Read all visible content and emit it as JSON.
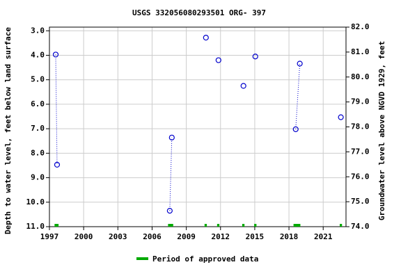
{
  "chart_data": {
    "type": "scatter",
    "title": "USGS 332056080293501 ORG- 397",
    "y_label": "Depth to water level, feet below land surface",
    "y2_label": "Groundwater level above NGVD 1929, feet",
    "x": [
      1997.55,
      1997.67,
      null,
      2007.55,
      2007.73,
      null,
      2010.72,
      null,
      2011.82,
      null,
      2014.01,
      null,
      2015.05,
      null,
      2018.59,
      2018.95,
      null,
      2022.55
    ],
    "series": [
      {
        "color": "#0000cc",
        "values": [
          3.97,
          8.47,
          null,
          10.35,
          7.36,
          null,
          3.28,
          null,
          4.2,
          null,
          5.25,
          null,
          4.05,
          null,
          7.02,
          4.34,
          null,
          6.53
        ]
      }
    ],
    "xlim": [
      1997,
      2023
    ],
    "xticks": [
      1997,
      2000,
      2003,
      2006,
      2009,
      2012,
      2015,
      2018,
      2021
    ],
    "ylim": [
      11,
      2.85
    ],
    "yticks": [
      {
        "value": 3,
        "label": "3.0"
      },
      {
        "value": 4,
        "label": "4.0"
      },
      {
        "value": 5,
        "label": "5.0"
      },
      {
        "value": 6,
        "label": "6.0"
      },
      {
        "value": 7,
        "label": "7.0"
      },
      {
        "value": 8,
        "label": "8.0"
      },
      {
        "value": 9,
        "label": "9.0"
      },
      {
        "value": 10,
        "label": "10.0"
      },
      {
        "value": 11,
        "label": "11.0"
      }
    ],
    "y2lim": [
      74,
      82
    ],
    "y2ticks": [
      {
        "value": 82,
        "label": "82.0"
      },
      {
        "value": 81,
        "label": "81.0"
      },
      {
        "value": 80,
        "label": "80.0"
      },
      {
        "value": 79,
        "label": "79.0"
      },
      {
        "value": 78,
        "label": "78.0"
      },
      {
        "value": 77,
        "label": "77.0"
      },
      {
        "value": 76,
        "label": "76.0"
      },
      {
        "value": 75,
        "label": "75.0"
      },
      {
        "value": 74,
        "label": "74.0"
      }
    ],
    "grid": true,
    "approved_periods": {
      "name": "Period of approved data",
      "color": "#00aa00",
      "ranges": [
        [
          1997.45,
          1997.8
        ],
        [
          2007.4,
          2007.85
        ],
        [
          2010.6,
          2010.8
        ],
        [
          2011.7,
          2011.9
        ],
        [
          2013.9,
          2014.1
        ],
        [
          2014.95,
          2015.15
        ],
        [
          2018.4,
          2019.0
        ],
        [
          2022.45,
          2022.65
        ]
      ]
    }
  }
}
